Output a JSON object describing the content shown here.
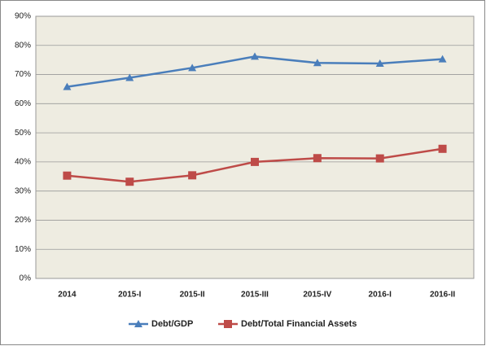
{
  "chart_data": {
    "type": "line",
    "categories": [
      "2014",
      "2015-I",
      "2015-II",
      "2015-III",
      "2015-IV",
      "2016-I",
      "2016-II"
    ],
    "series": [
      {
        "name": "Debt/GDP",
        "color": "#4a7ebb",
        "marker": "triangle",
        "values": [
          65.8,
          68.9,
          72.3,
          76.2,
          74.0,
          73.8,
          75.3
        ]
      },
      {
        "name": "Debt/Total Financial Assets",
        "color": "#be4b48",
        "marker": "square",
        "values": [
          35.3,
          33.2,
          35.4,
          40.0,
          41.3,
          41.2,
          44.5
        ]
      }
    ],
    "ylim": [
      0,
      90
    ],
    "yticks": [
      {
        "value": 0,
        "label": "0%"
      },
      {
        "value": 10,
        "label": "10%"
      },
      {
        "value": 20,
        "label": "20%"
      },
      {
        "value": 30,
        "label": "30%"
      },
      {
        "value": 40,
        "label": "40%"
      },
      {
        "value": 50,
        "label": "50%"
      },
      {
        "value": 60,
        "label": "60%"
      },
      {
        "value": 70,
        "label": "70%"
      },
      {
        "value": 80,
        "label": "80%"
      },
      {
        "value": 90,
        "label": "90%"
      }
    ],
    "grid": true,
    "legend": "bottom"
  }
}
